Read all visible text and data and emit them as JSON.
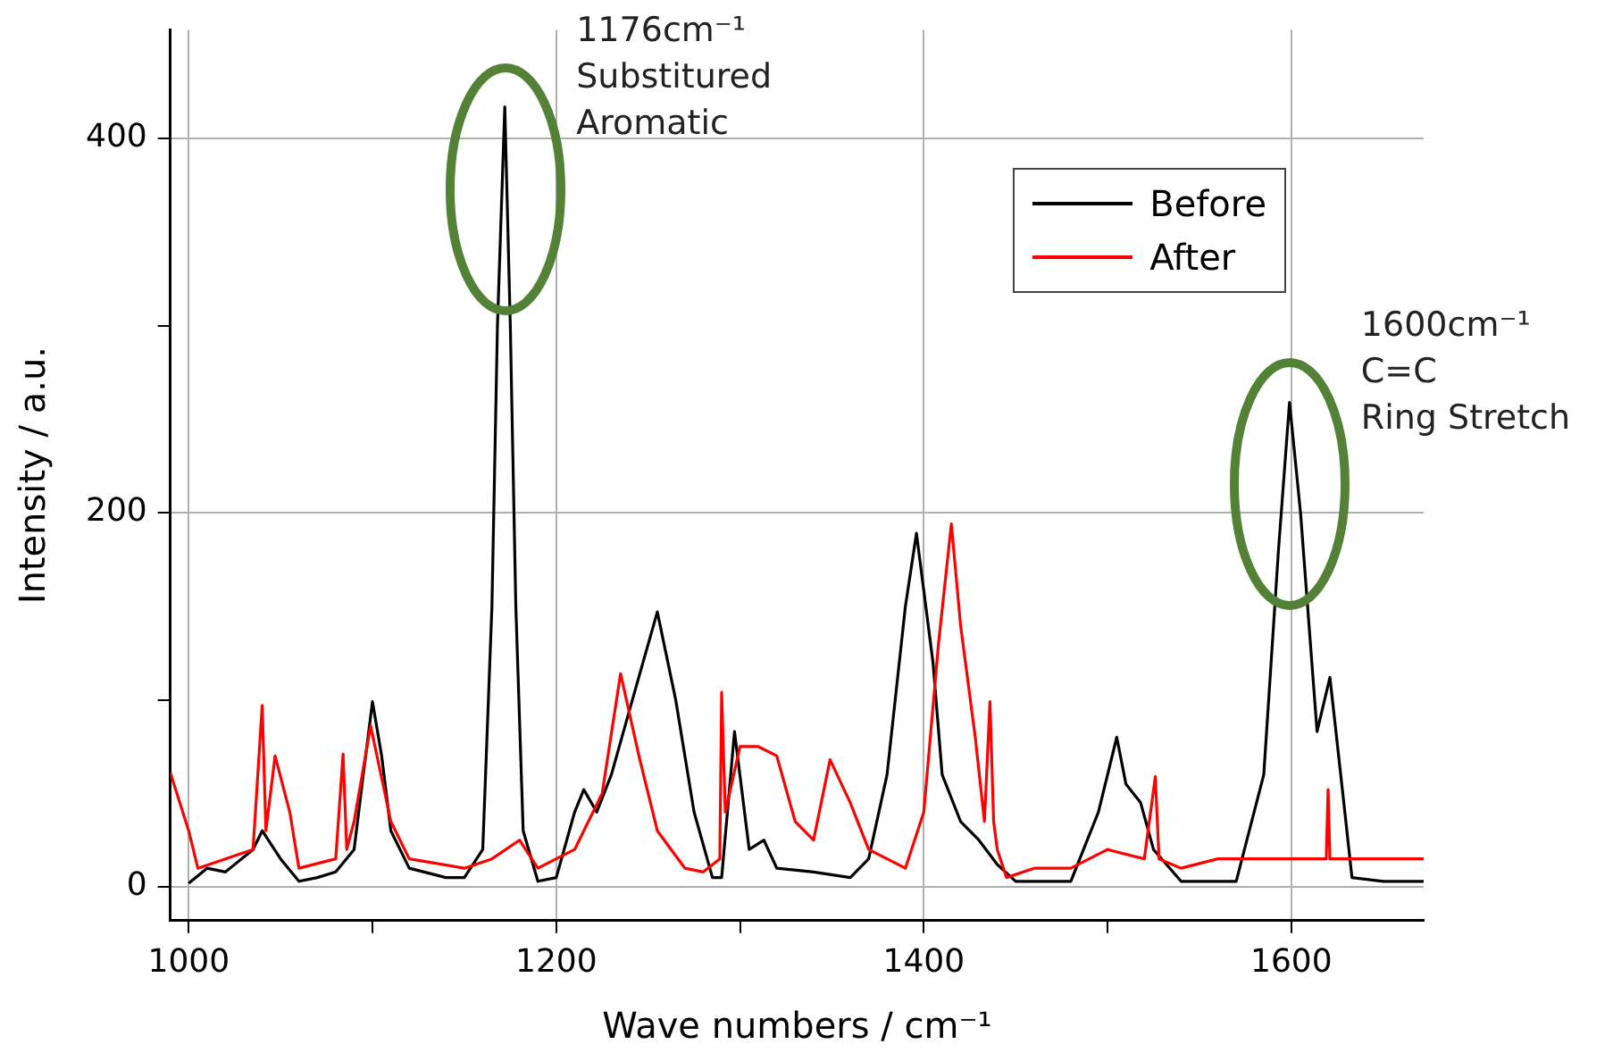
{
  "chart_data": {
    "type": "line",
    "xlabel": "Wave numbers / cm⁻¹",
    "ylabel": "Intensity / a.u.",
    "xlim": [
      990,
      1672
    ],
    "ylim": [
      -18,
      458
    ],
    "xticks": [
      1000,
      {
        "value": 1100,
        "label": null
      },
      1200,
      {
        "value": 1300,
        "label": null
      },
      1400,
      {
        "value": 1500,
        "label": null
      },
      1600
    ],
    "yticks": [
      0,
      {
        "value": 100,
        "label": null
      },
      200,
      {
        "value": 300,
        "label": null
      },
      400
    ],
    "grid": true,
    "legend": "top right",
    "marker": "none",
    "line_style": "solid",
    "annotations": [
      {
        "text": "1176cm⁻¹\nSubstitured\nAromatic",
        "x": 1172,
        "y": 417
      },
      {
        "text": "1600cm⁻¹\nC=C\nRing Stretch",
        "x": 1599,
        "y": 259
      }
    ],
    "series": [
      {
        "name": "Before",
        "color": "#000000",
        "x": [
          1000,
          1010,
          1020,
          1035,
          1040,
          1050,
          1060,
          1070,
          1080,
          1090,
          1095,
          1100,
          1105,
          1110,
          1120,
          1140,
          1150,
          1160,
          1165,
          1168,
          1172,
          1175,
          1178,
          1182,
          1190,
          1200,
          1210,
          1215,
          1222,
          1230,
          1240,
          1255,
          1265,
          1275,
          1285,
          1290,
          1297,
          1305,
          1313,
          1320,
          1340,
          1360,
          1370,
          1380,
          1390,
          1396,
          1405,
          1410,
          1420,
          1430,
          1440,
          1450,
          1480,
          1495,
          1505,
          1510,
          1518,
          1525,
          1540,
          1570,
          1585,
          1593,
          1599,
          1605,
          1614,
          1621,
          1628,
          1633,
          1650,
          1672
        ],
        "values": [
          2,
          10,
          8,
          20,
          30,
          15,
          3,
          5,
          8,
          20,
          60,
          99,
          70,
          30,
          10,
          5,
          5,
          20,
          150,
          300,
          417,
          300,
          150,
          30,
          3,
          5,
          40,
          52,
          40,
          60,
          95,
          147,
          100,
          40,
          5,
          5,
          83,
          20,
          25,
          10,
          8,
          5,
          15,
          60,
          150,
          189,
          120,
          60,
          35,
          25,
          12,
          3,
          3,
          40,
          80,
          55,
          45,
          20,
          3,
          3,
          60,
          180,
          259,
          200,
          83,
          112,
          50,
          5,
          3,
          3
        ]
      },
      {
        "name": "After",
        "color": "#ff0000",
        "x": [
          990,
          1000,
          1005,
          1020,
          1035,
          1040,
          1042,
          1047,
          1055,
          1060,
          1080,
          1084,
          1086,
          1090,
          1099,
          1110,
          1120,
          1150,
          1165,
          1180,
          1190,
          1210,
          1225,
          1235,
          1245,
          1255,
          1270,
          1280,
          1289,
          1290,
          1292,
          1300,
          1310,
          1320,
          1330,
          1340,
          1349,
          1360,
          1370,
          1380,
          1390,
          1400,
          1408,
          1415,
          1420,
          1428,
          1433,
          1436,
          1438,
          1440,
          1445,
          1460,
          1480,
          1500,
          1520,
          1526,
          1528,
          1540,
          1560,
          1580,
          1600,
          1619,
          1620,
          1621,
          1640,
          1672
        ],
        "values": [
          61,
          30,
          10,
          15,
          20,
          97,
          30,
          70,
          40,
          10,
          15,
          71,
          20,
          35,
          86,
          35,
          15,
          10,
          15,
          25,
          10,
          20,
          50,
          114,
          70,
          30,
          10,
          8,
          15,
          104,
          40,
          75,
          75,
          70,
          35,
          25,
          68,
          45,
          20,
          15,
          10,
          40,
          130,
          194,
          140,
          80,
          35,
          99,
          35,
          20,
          5,
          10,
          10,
          20,
          15,
          59,
          15,
          10,
          15,
          15,
          15,
          15,
          52,
          15,
          15,
          15
        ]
      }
    ]
  }
}
